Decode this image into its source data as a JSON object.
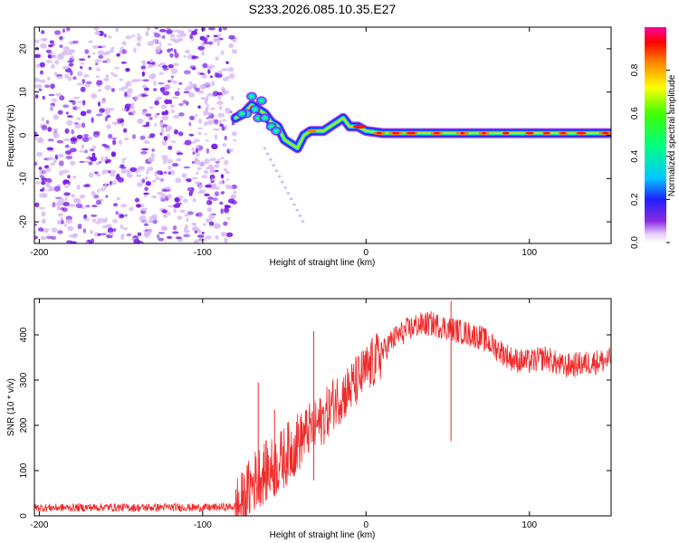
{
  "title": "S233.2026.085.10.35.E27",
  "colors": {
    "noise_dot": "#7a1ee8",
    "noise_light": "#d7b8f5",
    "snr_line": "#ee2a2a",
    "frame": "#000000"
  },
  "chart_data": [
    {
      "type": "heatmap",
      "name": "spectrogram",
      "xlabel": "Height of straight line (km)",
      "ylabel": "Frequency (Hz)",
      "xlim": [
        -203,
        150
      ],
      "ylim": [
        -25,
        25
      ],
      "xticks": [
        -200,
        -100,
        0,
        100
      ],
      "xtick_labels": [
        "-200",
        "-100",
        "0",
        "100"
      ],
      "yticks": [
        -20,
        -10,
        0,
        10,
        20
      ],
      "ytick_labels": [
        "-20",
        "-10",
        "0",
        "10",
        "20"
      ],
      "noise_region_x": [
        -203,
        -80
      ],
      "signal_track": {
        "x": [
          -80,
          -75,
          -70,
          -66,
          -62,
          -58,
          -54,
          -50,
          -46,
          -42,
          -38,
          -34,
          -30,
          -26,
          -22,
          -18,
          -14,
          -12,
          -10,
          -5,
          0,
          10,
          20,
          40,
          60,
          80,
          100,
          120,
          140,
          150
        ],
        "y": [
          4,
          5,
          7,
          6,
          5,
          3,
          2,
          -1,
          -2,
          -3,
          0,
          1,
          1,
          1,
          2,
          3,
          4,
          3,
          2,
          2,
          1,
          0.5,
          0.5,
          0.5,
          0.5,
          0.5,
          0.5,
          0.5,
          0.5,
          0.5
        ]
      },
      "colorbar": {
        "label": "Normalized spectral amplitude",
        "range": [
          0,
          1
        ],
        "ticks": [
          0,
          0.2,
          0.4,
          0.6,
          0.8
        ],
        "tick_labels": [
          "0.0",
          "0.2",
          "0.4",
          "0.6",
          "0.8"
        ]
      }
    },
    {
      "type": "line",
      "name": "snr",
      "xlabel": "Height of straight line (km)",
      "ylabel": "SNR (10 * v/v)",
      "xlim": [
        -203,
        150
      ],
      "ylim": [
        0,
        480
      ],
      "xticks": [
        -200,
        -100,
        0,
        100
      ],
      "xtick_labels": [
        "-200",
        "-100",
        "0",
        "100"
      ],
      "yticks": [
        0,
        100,
        200,
        300,
        400
      ],
      "ytick_labels": [
        "0",
        "100",
        "200",
        "300",
        "400"
      ],
      "series": [
        {
          "name": "SNR",
          "x": [
            -203,
            -180,
            -160,
            -140,
            -120,
            -100,
            -90,
            -80,
            -75,
            -70,
            -65,
            -60,
            -55,
            -50,
            -45,
            -40,
            -35,
            -30,
            -25,
            -20,
            -15,
            -10,
            -5,
            0,
            5,
            10,
            15,
            20,
            25,
            30,
            40,
            50,
            60,
            70,
            80,
            90,
            100,
            110,
            120,
            130,
            140,
            150
          ],
          "y": [
            18,
            18,
            19,
            18,
            19,
            18,
            19,
            20,
            30,
            70,
            90,
            100,
            110,
            130,
            150,
            170,
            190,
            200,
            220,
            250,
            265,
            280,
            300,
            320,
            340,
            360,
            385,
            400,
            410,
            420,
            425,
            415,
            405,
            395,
            370,
            345,
            340,
            350,
            330,
            335,
            340,
            345
          ]
        }
      ],
      "spikes": [
        {
          "x": -66,
          "y": 295
        },
        {
          "x": -56,
          "y": 235
        },
        {
          "x": -32,
          "y": 408
        },
        {
          "x": 52,
          "y": 475
        }
      ]
    }
  ]
}
